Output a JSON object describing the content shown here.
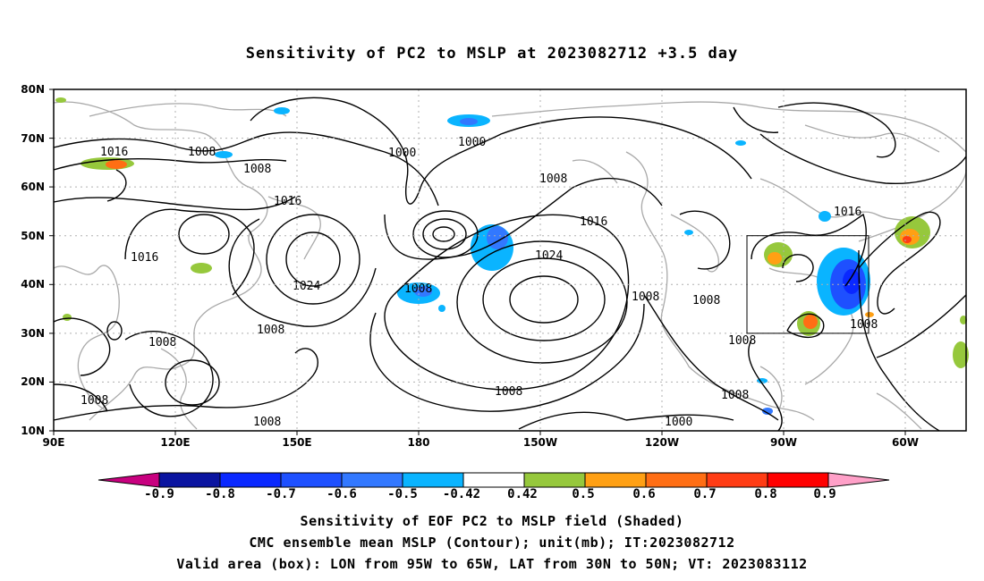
{
  "title": "Sensitivity of PC2 to MSLP at 2023082712 +3.5 day",
  "map": {
    "lat_labels": [
      "80N",
      "70N",
      "60N",
      "50N",
      "40N",
      "30N",
      "20N",
      "10N"
    ],
    "lon_labels": [
      "90E",
      "120E",
      "150E",
      "180",
      "150W",
      "120W",
      "90W",
      "60W"
    ],
    "contour_labels": [
      "1016",
      "1008",
      "1008",
      "1000",
      "1000",
      "1016",
      "1016",
      "1024",
      "1008",
      "1008",
      "1016",
      "1008",
      "1024",
      "1008",
      "1008",
      "1008",
      "1008",
      "1008",
      "1008",
      "1016",
      "1008",
      "1008",
      "1008",
      "1000"
    ],
    "box_label": "Valid area (box)"
  },
  "colorbar": {
    "labels": [
      "-0.9",
      "-0.8",
      "-0.7",
      "-0.6",
      "-0.5",
      "-0.42",
      "0.42",
      "0.5",
      "0.6",
      "0.7",
      "0.8",
      "0.9"
    ],
    "colors": [
      "#c8007f",
      "#0a14a0",
      "#0a28ff",
      "#1e50ff",
      "#3278ff",
      "#0ab4ff",
      "#ffffff",
      "#96c83c",
      "#ffa014",
      "#ff6e14",
      "#ff3c14",
      "#ff0000",
      "#ffa0c8"
    ]
  },
  "caption": {
    "line1": "Sensitivity of EOF PC2 to MSLP field (Shaded)",
    "line2": "CMC ensemble mean MSLP (Contour); unit(mb); IT:2023082712",
    "line3": "Valid area (box): LON from 95W to 65W, LAT from 30N to 50N; VT: 2023083112"
  }
}
